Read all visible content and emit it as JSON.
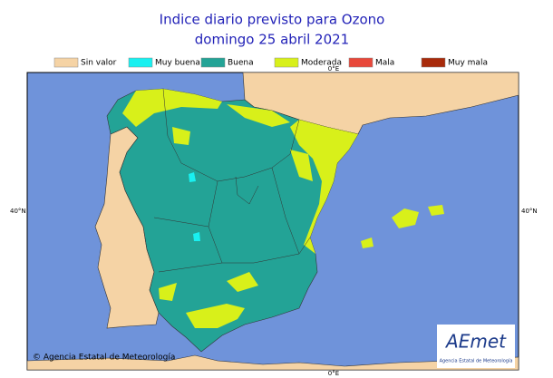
{
  "header": {
    "title": "Indice diario previsto para Ozono",
    "subtitle": "domingo 25 abril 2021"
  },
  "legend": [
    {
      "label": "Sin valor",
      "color": "#f5d3a5"
    },
    {
      "label": "Muy buena",
      "color": "#19f0f0"
    },
    {
      "label": "Buena",
      "color": "#23a396"
    },
    {
      "label": "Moderada",
      "color": "#d8f01a"
    },
    {
      "label": "Mala",
      "color": "#e8483a"
    },
    {
      "label": "Muy mala",
      "color": "#a82a0a"
    }
  ],
  "map": {
    "lon_label_top": "0°E",
    "lon_label_bottom": "0°E",
    "lat_label_left": "40°N",
    "lat_label_right": "40°N"
  },
  "footer": {
    "copyright": "© Agencia Estatal de Meteorología",
    "logo": "AEmet",
    "logo_caption": "Agencia Estatal de Meteorología"
  }
}
